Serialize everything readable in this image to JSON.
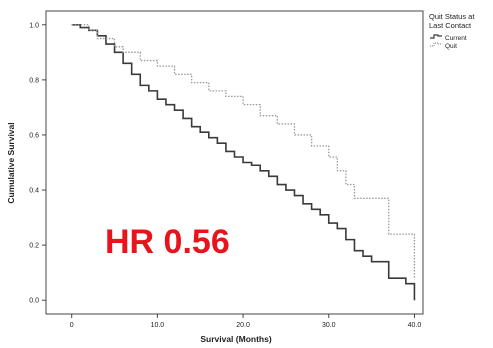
{
  "chart_data": {
    "type": "line",
    "subtype": "kaplan-meier",
    "xlabel": "Survival (Months)",
    "ylabel": "Cumulative Survival",
    "xlim": [
      -3,
      41
    ],
    "ylim": [
      -0.05,
      1.05
    ],
    "xticks": [
      "0",
      "10.0",
      "20.0",
      "30.0",
      "40.0"
    ],
    "xtick_values": [
      0,
      10,
      20,
      30,
      40
    ],
    "yticks": [
      "0.0",
      "0.2",
      "0.4",
      "0.6",
      "0.8",
      "1.0"
    ],
    "ytick_values": [
      0,
      0.2,
      0.4,
      0.6,
      0.8,
      1.0
    ],
    "legend": {
      "title_lines": [
        "Quit Status at",
        "Last Contact"
      ],
      "placement": "outside-right-top"
    },
    "annotation": "HR 0.56",
    "annotation_color": "#e8141c",
    "series": [
      {
        "name": "Current",
        "color": "#3a3a3a",
        "style": "step-solid",
        "points": [
          [
            0,
            1.0
          ],
          [
            1,
            0.99
          ],
          [
            2,
            0.98
          ],
          [
            3,
            0.96
          ],
          [
            4,
            0.93
          ],
          [
            5,
            0.9
          ],
          [
            6,
            0.86
          ],
          [
            7,
            0.82
          ],
          [
            8,
            0.78
          ],
          [
            9,
            0.76
          ],
          [
            10,
            0.73
          ],
          [
            11,
            0.71
          ],
          [
            12,
            0.69
          ],
          [
            13,
            0.66
          ],
          [
            14,
            0.63
          ],
          [
            15,
            0.61
          ],
          [
            16,
            0.59
          ],
          [
            17,
            0.57
          ],
          [
            18,
            0.54
          ],
          [
            19,
            0.52
          ],
          [
            20,
            0.5
          ],
          [
            21,
            0.49
          ],
          [
            22,
            0.47
          ],
          [
            23,
            0.45
          ],
          [
            24,
            0.42
          ],
          [
            25,
            0.4
          ],
          [
            26,
            0.38
          ],
          [
            27,
            0.35
          ],
          [
            28,
            0.33
          ],
          [
            29,
            0.31
          ],
          [
            30,
            0.28
          ],
          [
            31,
            0.26
          ],
          [
            32,
            0.22
          ],
          [
            33,
            0.18
          ],
          [
            34,
            0.16
          ],
          [
            35,
            0.14
          ],
          [
            37,
            0.08
          ],
          [
            39,
            0.06
          ],
          [
            40,
            0.0
          ]
        ]
      },
      {
        "name": "Quit",
        "color": "#9a9a9a",
        "style": "step-dotted",
        "points": [
          [
            0,
            1.0
          ],
          [
            2,
            0.98
          ],
          [
            3,
            0.95
          ],
          [
            5,
            0.92
          ],
          [
            6,
            0.9
          ],
          [
            8,
            0.87
          ],
          [
            10,
            0.85
          ],
          [
            12,
            0.82
          ],
          [
            14,
            0.79
          ],
          [
            16,
            0.76
          ],
          [
            18,
            0.74
          ],
          [
            20,
            0.71
          ],
          [
            22,
            0.67
          ],
          [
            24,
            0.64
          ],
          [
            26,
            0.6
          ],
          [
            28,
            0.56
          ],
          [
            30,
            0.52
          ],
          [
            31,
            0.47
          ],
          [
            32,
            0.42
          ],
          [
            33,
            0.37
          ],
          [
            37,
            0.24
          ],
          [
            40,
            0.08
          ]
        ]
      }
    ]
  }
}
